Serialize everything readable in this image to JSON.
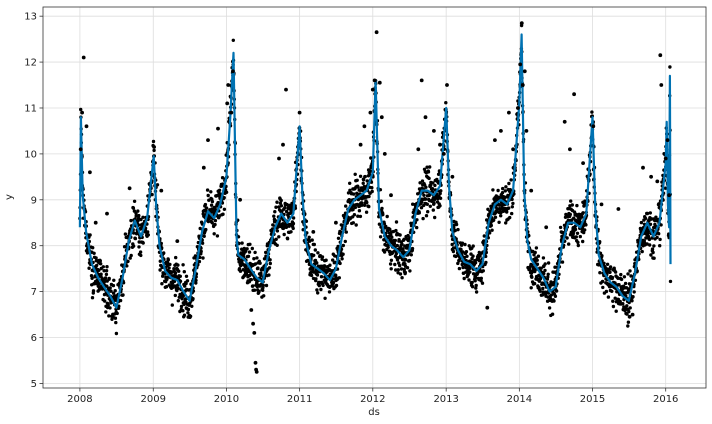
{
  "chart_data": {
    "type": "scatter",
    "title": "",
    "xlabel": "ds",
    "ylabel": "y",
    "xlim": [
      "2007-07-01",
      "2016-07-20"
    ],
    "ylim": [
      4.9,
      13.2
    ],
    "grid": true,
    "x_ticks": [
      "2008",
      "2009",
      "2010",
      "2011",
      "2012",
      "2013",
      "2014",
      "2015",
      "2016"
    ],
    "y_ticks": [
      "5",
      "6",
      "7",
      "8",
      "9",
      "10",
      "11",
      "12",
      "13"
    ],
    "series": [
      {
        "style": "forecast line",
        "color": "#0072B2",
        "points": [
          [
            "2008-01-01",
            8.4
          ],
          [
            "2008-01-06",
            10.8
          ],
          [
            "2008-01-15",
            9.1
          ],
          [
            "2008-02-01",
            8.3
          ],
          [
            "2008-03-01",
            7.6
          ],
          [
            "2008-04-01",
            7.3
          ],
          [
            "2008-05-01",
            7.1
          ],
          [
            "2008-06-01",
            6.9
          ],
          [
            "2008-07-01",
            6.65
          ],
          [
            "2008-08-01",
            7.3
          ],
          [
            "2008-09-01",
            8.1
          ],
          [
            "2008-10-01",
            8.55
          ],
          [
            "2008-11-01",
            8.2
          ],
          [
            "2008-12-01",
            8.6
          ],
          [
            "2009-01-03",
            9.95
          ],
          [
            "2009-01-15",
            8.9
          ],
          [
            "2009-02-01",
            8.0
          ],
          [
            "2009-03-01",
            7.45
          ],
          [
            "2009-04-01",
            7.3
          ],
          [
            "2009-05-01",
            7.25
          ],
          [
            "2009-06-01",
            7.0
          ],
          [
            "2009-07-01",
            6.8
          ],
          [
            "2009-08-01",
            7.5
          ],
          [
            "2009-09-01",
            8.3
          ],
          [
            "2009-10-01",
            8.75
          ],
          [
            "2009-11-01",
            8.6
          ],
          [
            "2009-12-01",
            8.9
          ],
          [
            "2010-01-01",
            9.5
          ],
          [
            "2010-01-20",
            10.8
          ],
          [
            "2010-02-05",
            12.2
          ],
          [
            "2010-02-20",
            8.2
          ],
          [
            "2010-03-01",
            7.8
          ],
          [
            "2010-04-01",
            7.7
          ],
          [
            "2010-05-01",
            7.5
          ],
          [
            "2010-06-01",
            7.3
          ],
          [
            "2010-07-01",
            7.2
          ],
          [
            "2010-08-01",
            7.9
          ],
          [
            "2010-09-01",
            8.4
          ],
          [
            "2010-10-01",
            8.7
          ],
          [
            "2010-11-01",
            8.5
          ],
          [
            "2010-12-01",
            8.7
          ],
          [
            "2011-01-01",
            10.6
          ],
          [
            "2011-01-15",
            9.1
          ],
          [
            "2011-02-01",
            8.1
          ],
          [
            "2011-03-01",
            7.6
          ],
          [
            "2011-04-01",
            7.5
          ],
          [
            "2011-05-01",
            7.4
          ],
          [
            "2011-06-01",
            7.25
          ],
          [
            "2011-07-01",
            7.5
          ],
          [
            "2011-08-01",
            8.2
          ],
          [
            "2011-09-01",
            8.8
          ],
          [
            "2011-10-01",
            9.0
          ],
          [
            "2011-11-01",
            9.1
          ],
          [
            "2011-12-01",
            9.2
          ],
          [
            "2012-01-01",
            9.6
          ],
          [
            "2012-01-15",
            11.6
          ],
          [
            "2012-02-01",
            8.8
          ],
          [
            "2012-03-01",
            8.2
          ],
          [
            "2012-04-01",
            8.0
          ],
          [
            "2012-05-01",
            7.9
          ],
          [
            "2012-06-01",
            7.75
          ],
          [
            "2012-07-01",
            7.9
          ],
          [
            "2012-08-01",
            8.7
          ],
          [
            "2012-09-01",
            9.2
          ],
          [
            "2012-10-01",
            9.2
          ],
          [
            "2012-11-01",
            9.1
          ],
          [
            "2012-12-01",
            9.3
          ],
          [
            "2013-01-01",
            11.0
          ],
          [
            "2013-01-15",
            9.3
          ],
          [
            "2013-02-01",
            8.3
          ],
          [
            "2013-03-01",
            7.9
          ],
          [
            "2013-04-01",
            7.65
          ],
          [
            "2013-05-01",
            7.6
          ],
          [
            "2013-06-01",
            7.45
          ],
          [
            "2013-07-01",
            7.6
          ],
          [
            "2013-08-01",
            8.5
          ],
          [
            "2013-09-01",
            8.9
          ],
          [
            "2013-10-01",
            9.0
          ],
          [
            "2013-11-01",
            8.9
          ],
          [
            "2013-12-01",
            9.2
          ],
          [
            "2014-01-01",
            11.1
          ],
          [
            "2014-01-12",
            12.6
          ],
          [
            "2014-01-25",
            9.2
          ],
          [
            "2014-02-10",
            8.1
          ],
          [
            "2014-03-01",
            7.7
          ],
          [
            "2014-04-01",
            7.5
          ],
          [
            "2014-05-01",
            7.3
          ],
          [
            "2014-06-01",
            7.0
          ],
          [
            "2014-07-01",
            7.1
          ],
          [
            "2014-08-01",
            8.0
          ],
          [
            "2014-09-01",
            8.5
          ],
          [
            "2014-10-01",
            8.5
          ],
          [
            "2014-11-01",
            8.4
          ],
          [
            "2014-12-01",
            8.7
          ],
          [
            "2015-01-01",
            10.8
          ],
          [
            "2015-01-15",
            8.8
          ],
          [
            "2015-02-01",
            7.8
          ],
          [
            "2015-03-01",
            7.4
          ],
          [
            "2015-04-01",
            7.2
          ],
          [
            "2015-05-01",
            7.1
          ],
          [
            "2015-06-01",
            6.9
          ],
          [
            "2015-07-01",
            6.8
          ],
          [
            "2015-08-01",
            7.4
          ],
          [
            "2015-09-01",
            8.2
          ],
          [
            "2015-10-01",
            8.5
          ],
          [
            "2015-11-01",
            8.2
          ],
          [
            "2015-12-01",
            8.5
          ],
          [
            "2016-01-01",
            9.8
          ],
          [
            "2016-01-06",
            10.7
          ],
          [
            "2016-01-12",
            8.9
          ],
          [
            "2016-01-18",
            8.4
          ],
          [
            "2016-01-22",
            11.7
          ],
          [
            "2016-01-25",
            7.6
          ]
        ]
      },
      {
        "style": "observed points",
        "color": "#000000",
        "points": [
          [
            "2008-01-20",
            12.1
          ],
          [
            "2008-01-12",
            10.9
          ],
          [
            "2008-02-03",
            10.6
          ],
          [
            "2008-01-05",
            10.1
          ],
          [
            "2008-02-20",
            9.6
          ],
          [
            "2008-03-20",
            8.5
          ],
          [
            "2008-05-15",
            8.7
          ],
          [
            "2008-09-05",
            9.25
          ],
          [
            "2009-01-05",
            10.15
          ],
          [
            "2009-02-10",
            9.2
          ],
          [
            "2009-05-01",
            8.1
          ],
          [
            "2009-09-10",
            9.7
          ],
          [
            "2009-10-01",
            10.3
          ],
          [
            "2009-11-20",
            10.55
          ],
          [
            "2010-01-05",
            11.1
          ],
          [
            "2010-01-10",
            11.5
          ],
          [
            "2010-01-25",
            10.9
          ],
          [
            "2010-02-02",
            11.8
          ],
          [
            "2010-03-10",
            9.0
          ],
          [
            "2010-05-05",
            6.6
          ],
          [
            "2010-05-14",
            6.3
          ],
          [
            "2010-05-20",
            6.1
          ],
          [
            "2010-05-26",
            5.45
          ],
          [
            "2010-05-29",
            5.3
          ],
          [
            "2010-06-01",
            5.25
          ],
          [
            "2010-09-20",
            9.9
          ],
          [
            "2010-10-10",
            10.2
          ],
          [
            "2010-10-25",
            11.4
          ],
          [
            "2011-01-01",
            10.9
          ],
          [
            "2011-03-10",
            8.3
          ],
          [
            "2011-07-01",
            8.5
          ],
          [
            "2011-11-01",
            10.2
          ],
          [
            "2011-11-20",
            10.6
          ],
          [
            "2011-12-20",
            10.9
          ],
          [
            "2012-01-01",
            11.4
          ],
          [
            "2012-01-10",
            11.6
          ],
          [
            "2012-01-20",
            12.65
          ],
          [
            "2012-02-05",
            11.55
          ],
          [
            "2012-02-15",
            10.8
          ],
          [
            "2012-03-01",
            10.0
          ],
          [
            "2012-04-01",
            9.1
          ],
          [
            "2012-06-10",
            7.7
          ],
          [
            "2012-08-15",
            10.1
          ],
          [
            "2012-09-01",
            11.6
          ],
          [
            "2012-09-20",
            10.8
          ],
          [
            "2012-11-01",
            10.5
          ],
          [
            "2012-12-01",
            10.2
          ],
          [
            "2012-12-20",
            10.0
          ],
          [
            "2013-01-05",
            11.5
          ],
          [
            "2013-02-01",
            9.5
          ],
          [
            "2013-07-25",
            6.65
          ],
          [
            "2013-09-01",
            10.3
          ],
          [
            "2013-10-01",
            10.5
          ],
          [
            "2013-11-10",
            10.9
          ],
          [
            "2013-12-01",
            10.1
          ],
          [
            "2013-12-25",
            11.0
          ],
          [
            "2014-01-05",
            11.95
          ],
          [
            "2014-01-13",
            12.85
          ],
          [
            "2014-01-18",
            11.5
          ],
          [
            "2014-01-28",
            11.8
          ],
          [
            "2014-02-05",
            10.5
          ],
          [
            "2014-03-01",
            9.2
          ],
          [
            "2014-05-15",
            8.4
          ],
          [
            "2014-08-15",
            10.7
          ],
          [
            "2014-09-10",
            10.1
          ],
          [
            "2014-10-01",
            11.3
          ],
          [
            "2014-11-15",
            9.8
          ],
          [
            "2015-01-05",
            10.6
          ],
          [
            "2015-02-15",
            8.9
          ],
          [
            "2015-05-10",
            8.8
          ],
          [
            "2015-07-05",
            6.45
          ],
          [
            "2015-07-20",
            6.5
          ],
          [
            "2015-09-10",
            9.7
          ],
          [
            "2015-10-20",
            9.5
          ],
          [
            "2015-11-20",
            9.4
          ],
          [
            "2015-12-05",
            12.15
          ],
          [
            "2015-12-10",
            11.5
          ],
          [
            "2016-01-01",
            9.9
          ],
          [
            "2016-01-10",
            10.3
          ],
          [
            "2016-01-18",
            9.1
          ]
        ]
      }
    ]
  }
}
